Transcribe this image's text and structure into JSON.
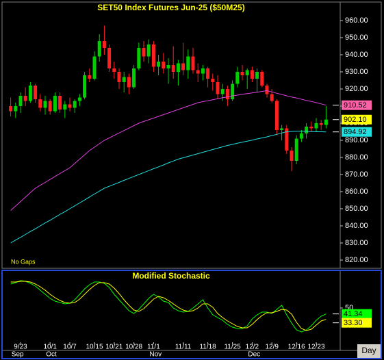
{
  "chart_data": [
    {
      "type": "candlestick",
      "title": "SET50 Index Futures Jun-25 ($50M25)",
      "note": "No Gaps",
      "up_color": "#00d000",
      "down_color": "#ff2020",
      "open": [
        910,
        907,
        910,
        916,
        913,
        922,
        914,
        909,
        913,
        907,
        916,
        908,
        911,
        909,
        913,
        915,
        928,
        926,
        939,
        948,
        944,
        932,
        930,
        924,
        927,
        921,
        932,
        944,
        939,
        946,
        933,
        936,
        932,
        934,
        930,
        935,
        931,
        939,
        931,
        929,
        932,
        926,
        924,
        917,
        920,
        914,
        923,
        930,
        928,
        931,
        926,
        930,
        922,
        917,
        913,
        896,
        897,
        884,
        878,
        891,
        894,
        898,
        897,
        900,
        899
      ],
      "high": [
        915,
        912,
        918,
        921,
        924,
        923,
        917,
        916,
        914,
        918,
        918,
        913,
        915,
        914,
        917,
        930,
        932,
        942,
        952,
        957,
        946,
        936,
        932,
        930,
        929,
        934,
        947,
        948,
        949,
        948,
        940,
        941,
        938,
        945,
        937,
        947,
        943,
        944,
        935,
        934,
        933,
        929,
        928,
        923,
        922,
        925,
        933,
        934,
        932,
        933,
        932,
        931,
        923,
        920,
        914,
        899,
        899,
        886,
        893,
        896,
        900,
        901,
        903,
        902,
        910
      ],
      "low": [
        904,
        903,
        906,
        910,
        912,
        912,
        907,
        905,
        905,
        906,
        906,
        903,
        907,
        906,
        910,
        914,
        924,
        925,
        936,
        940,
        930,
        926,
        920,
        918,
        917,
        920,
        931,
        936,
        935,
        930,
        928,
        929,
        923,
        926,
        922,
        928,
        926,
        929,
        924,
        925,
        921,
        919,
        914,
        913,
        910,
        913,
        921,
        925,
        920,
        924,
        918,
        921,
        915,
        912,
        893,
        890,
        882,
        872,
        876,
        889,
        891,
        895,
        895,
        896,
        897
      ],
      "close": [
        907,
        910,
        916,
        913,
        922,
        914,
        909,
        913,
        907,
        916,
        908,
        911,
        909,
        913,
        915,
        928,
        926,
        939,
        948,
        944,
        932,
        930,
        924,
        927,
        921,
        932,
        944,
        939,
        946,
        933,
        936,
        932,
        934,
        930,
        935,
        931,
        939,
        931,
        929,
        932,
        926,
        924,
        917,
        920,
        914,
        923,
        930,
        928,
        931,
        926,
        930,
        922,
        917,
        913,
        896,
        897,
        884,
        878,
        891,
        894,
        898,
        897,
        900,
        899,
        902.1
      ],
      "last_label": "902.10",
      "last_color": "#ffff00",
      "series": [
        {
          "color": "#e040e0",
          "end_label": "910.52",
          "badge_color": "#ff60a8",
          "values": [
            849,
            851.6,
            854.2,
            856.8,
            859.4,
            862,
            863.7,
            865.4,
            867.1,
            868.9,
            870.6,
            872.3,
            874,
            876.5,
            879,
            881.5,
            884,
            886,
            888,
            890,
            891.4,
            892.9,
            894.3,
            895.7,
            897.1,
            898.6,
            900,
            901,
            902,
            903,
            904,
            905,
            906,
            907,
            908,
            909,
            910,
            911,
            912,
            912.6,
            913.1,
            913.7,
            914.3,
            914.9,
            915.4,
            916,
            916.4,
            916.9,
            917.3,
            917.7,
            918.1,
            918.6,
            919,
            918.3,
            917.5,
            916.8,
            916,
            915.3,
            914.7,
            914,
            913.3,
            912.7,
            912,
            911.3,
            910.52
          ]
        },
        {
          "color": "#20e0e0",
          "end_label": "894.92",
          "badge_color": "#20e0e0",
          "values": [
            830,
            831.7,
            833.3,
            835,
            836.7,
            838.3,
            840,
            841.7,
            843.3,
            845,
            846.7,
            848.3,
            850,
            851.7,
            853.4,
            855.1,
            856.9,
            858.6,
            860.3,
            862,
            863.1,
            864.3,
            865.4,
            866.6,
            867.7,
            868.9,
            870,
            871.1,
            872.3,
            873.4,
            874.5,
            875.6,
            876.8,
            877.9,
            879,
            879.8,
            880.6,
            881.4,
            882.2,
            883,
            883.8,
            884.6,
            885.4,
            886.2,
            887,
            887.6,
            888.3,
            888.9,
            889.5,
            890.1,
            890.8,
            891.4,
            892,
            892.8,
            893.5,
            894.3,
            895,
            895.2,
            895.3,
            895.3,
            895.2,
            895.1,
            895,
            895,
            894.92
          ]
        }
      ],
      "ylim": [
        815,
        970
      ],
      "yticks": [
        {
          "value": 960,
          "label": "960.00"
        },
        {
          "value": 950,
          "label": "950.00"
        },
        {
          "value": 940,
          "label": "940.00"
        },
        {
          "value": 930,
          "label": "930.00"
        },
        {
          "value": 920,
          "label": "920.00"
        },
        {
          "value": 910,
          "label": "910.00"
        },
        {
          "value": 900,
          "label": "900.00"
        },
        {
          "value": 890,
          "label": "890.00"
        },
        {
          "value": 880,
          "label": "880.00"
        },
        {
          "value": 870,
          "label": "870.00"
        },
        {
          "value": 860,
          "label": "860.00"
        },
        {
          "value": 850,
          "label": "850.00"
        },
        {
          "value": 840,
          "label": "840.00"
        },
        {
          "value": 830,
          "label": "830.00"
        },
        {
          "value": 820,
          "label": "820.00"
        }
      ]
    },
    {
      "type": "line",
      "title": "Modified Stochastic",
      "categories": [
        null,
        null,
        "9/23",
        null,
        null,
        null,
        null,
        null,
        "10/1",
        null,
        null,
        null,
        "10/7",
        null,
        null,
        null,
        null,
        "10/15",
        null,
        null,
        null,
        "10/21",
        null,
        null,
        null,
        "10/28",
        null,
        null,
        null,
        "11/1",
        null,
        null,
        null,
        null,
        null,
        "11/11",
        null,
        null,
        null,
        null,
        "11/18",
        null,
        null,
        null,
        null,
        "11/25",
        null,
        null,
        null,
        "12/2",
        null,
        null,
        null,
        "12/9",
        null,
        null,
        null,
        null,
        "12/16",
        null,
        null,
        null,
        "12/23",
        null,
        null
      ],
      "months": [
        null,
        "Sep",
        null,
        null,
        null,
        null,
        null,
        null,
        "Oct",
        null,
        null,
        null,
        null,
        null,
        null,
        null,
        null,
        null,
        null,
        null,
        null,
        null,
        null,
        null,
        null,
        null,
        null,
        null,
        null,
        "Nov",
        null,
        null,
        null,
        null,
        null,
        null,
        null,
        null,
        null,
        null,
        null,
        null,
        null,
        null,
        null,
        null,
        null,
        null,
        null,
        "Dec",
        null,
        null,
        null,
        null,
        null,
        null,
        null,
        null,
        null,
        null,
        null,
        null,
        null,
        null,
        null
      ],
      "series": [
        {
          "color": "#00ff00",
          "end_label": "41.34",
          "values": [
            85,
            87,
            90,
            89,
            86,
            82,
            76,
            70,
            64,
            60,
            58,
            56,
            57,
            62,
            70,
            78,
            84,
            88,
            88,
            86,
            80,
            70,
            62,
            54,
            46,
            42,
            48,
            56,
            64,
            70,
            66,
            60,
            58,
            50,
            46,
            44,
            45,
            50,
            56,
            62,
            50,
            40,
            36,
            32,
            26,
            22,
            20,
            20,
            24,
            34,
            40,
            44,
            44,
            42,
            48,
            54,
            40,
            28,
            18,
            15,
            18,
            24,
            32,
            38,
            41.34
          ]
        },
        {
          "color": "#ffff00",
          "end_label": "33.30",
          "values": [
            88,
            88,
            89,
            89,
            88,
            85,
            81,
            76,
            70,
            65,
            61,
            58,
            57,
            58,
            63,
            70,
            77,
            83,
            87,
            87,
            85,
            79,
            71,
            62,
            54,
            47,
            45,
            49,
            56,
            63,
            67,
            65,
            61,
            56,
            51,
            47,
            45,
            46,
            50,
            56,
            56,
            51,
            42,
            36,
            31,
            27,
            23,
            21,
            21,
            26,
            33,
            39,
            43,
            43,
            45,
            48,
            47,
            41,
            29,
            20,
            17,
            19,
            25,
            31,
            33.3
          ]
        }
      ],
      "ylim": [
        0,
        100
      ],
      "yticks": [
        50
      ]
    }
  ],
  "footer": {
    "interval": "Day"
  }
}
